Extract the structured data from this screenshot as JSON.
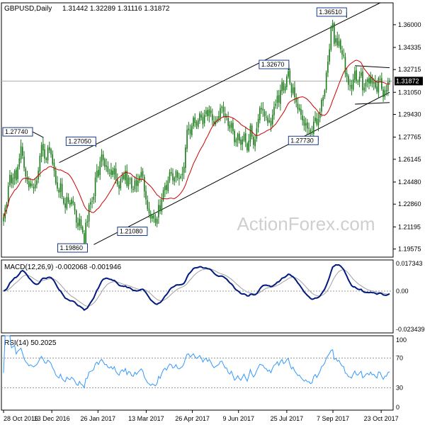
{
  "header": {
    "symbol": "GBPUSD,Daily",
    "ohlc": "1.31442 1.32289 1.31116 1.31872"
  },
  "watermark": "ActionForex.com",
  "colors": {
    "candle": "#1a7a1a",
    "ma": "#cc0000",
    "macd": "#001a80",
    "signal": "#a0a0a0",
    "rsi": "#3399ff",
    "channel": "#000000",
    "grid_dots": "#999999",
    "price_box": "#000000",
    "watermark": "#cfcfcf"
  },
  "chart_data": [
    {
      "type": "candlestick",
      "title": "GBPUSD,Daily",
      "ylim": [
        1.1898,
        1.376
      ],
      "y_ticks": [
        "1.36000",
        "1.34335",
        "1.32715",
        "1.31050",
        "1.29430",
        "1.27765",
        "1.26145",
        "1.24480",
        "1.22860",
        "1.21195",
        "1.19575"
      ],
      "current_price": "1.31872",
      "x_ticks": [
        "28 Oct 2016",
        "13 Dec 2016",
        "26 Jan 2017",
        "13 Mar 2017",
        "26 Apr 2017",
        "9 Jun 2017",
        "25 Jul 2017",
        "7 Sep 2017",
        "23 Oct 2017"
      ],
      "annotations": [
        {
          "text": "1.27740",
          "x": "2016-12-05",
          "y": 1.2774
        },
        {
          "text": "1.27050",
          "x": "2017-01-24",
          "y": 1.2705
        },
        {
          "text": "1.19860",
          "x": "2017-01-16",
          "y": 1.1986
        },
        {
          "text": "1.21080",
          "x": "2017-03-14",
          "y": 1.2108
        },
        {
          "text": "1.32670",
          "x": "2017-07-27",
          "y": 1.3267
        },
        {
          "text": "1.27730",
          "x": "2017-08-24",
          "y": 1.2773
        },
        {
          "text": "1.36510",
          "x": "2017-09-20",
          "y": 1.3651
        }
      ],
      "close": [
        1.219,
        1.226,
        1.229,
        1.242,
        1.25,
        1.244,
        1.248,
        1.253,
        1.246,
        1.256,
        1.262,
        1.271,
        1.264,
        1.255,
        1.249,
        1.246,
        1.241,
        1.244,
        1.242,
        1.24,
        1.243,
        1.246,
        1.253,
        1.264,
        1.272,
        1.268,
        1.262,
        1.261,
        1.27,
        1.268,
        1.265,
        1.258,
        1.253,
        1.244,
        1.24,
        1.237,
        1.244,
        1.234,
        1.229,
        1.226,
        1.234,
        1.23,
        1.228,
        1.232,
        1.229,
        1.224,
        1.215,
        1.212,
        1.218,
        1.211,
        1.208,
        1.2,
        1.215,
        1.216,
        1.228,
        1.23,
        1.231,
        1.234,
        1.248,
        1.253,
        1.249,
        1.26,
        1.265,
        1.261,
        1.256,
        1.257,
        1.252,
        1.251,
        1.254,
        1.25,
        1.255,
        1.247,
        1.243,
        1.24,
        1.247,
        1.25,
        1.247,
        1.253,
        1.242,
        1.248,
        1.247,
        1.24,
        1.239,
        1.246,
        1.242,
        1.246,
        1.249,
        1.252,
        1.249,
        1.238,
        1.232,
        1.225,
        1.222,
        1.218,
        1.22,
        1.218,
        1.215,
        1.218,
        1.228,
        1.224,
        1.232,
        1.239,
        1.242,
        1.239,
        1.246,
        1.252,
        1.251,
        1.246,
        1.248,
        1.253,
        1.248,
        1.247,
        1.249,
        1.251,
        1.256,
        1.27,
        1.283,
        1.284,
        1.28,
        1.286,
        1.292,
        1.288,
        1.286,
        1.29,
        1.295,
        1.292,
        1.287,
        1.294,
        1.297,
        1.293,
        1.298,
        1.295,
        1.29,
        1.287,
        1.289,
        1.291,
        1.293,
        1.299,
        1.3,
        1.296,
        1.292,
        1.292,
        1.286,
        1.284,
        1.288,
        1.282,
        1.274,
        1.276,
        1.28,
        1.275,
        1.272,
        1.276,
        1.28,
        1.274,
        1.268,
        1.275,
        1.286,
        1.278,
        1.272,
        1.276,
        1.284,
        1.291,
        1.299,
        1.298,
        1.297,
        1.293,
        1.292,
        1.288,
        1.29,
        1.286,
        1.294,
        1.3,
        1.302,
        1.308,
        1.303,
        1.312,
        1.318,
        1.312,
        1.315,
        1.322,
        1.326,
        1.317,
        1.31,
        1.314,
        1.307,
        1.303,
        1.298,
        1.299,
        1.294,
        1.29,
        1.286,
        1.288,
        1.284,
        1.284,
        1.28,
        1.281,
        1.289,
        1.292,
        1.287,
        1.291,
        1.296,
        1.305,
        1.307,
        1.312,
        1.325,
        1.333,
        1.342,
        1.358,
        1.361,
        1.346,
        1.35,
        1.345,
        1.348,
        1.342,
        1.338,
        1.337,
        1.324,
        1.322,
        1.316,
        1.315,
        1.313,
        1.32,
        1.326,
        1.319,
        1.318,
        1.322,
        1.325,
        1.312,
        1.314,
        1.318,
        1.32,
        1.317,
        1.322,
        1.317,
        1.318,
        1.314,
        1.311,
        1.321,
        1.32,
        1.313,
        1.307,
        1.312,
        1.312,
        1.318,
        1.319
      ]
    },
    {
      "type": "line",
      "title": "MACD(12,26,9) -0.002068 -0.001946",
      "ylim": [
        -0.02344,
        0.0175
      ],
      "y_ticks": [
        "0.017343",
        "0.00",
        "-0.023439"
      ],
      "series": [
        {
          "name": "MACD(12,26,9)"
        },
        {
          "name": "signal"
        }
      ]
    },
    {
      "type": "line",
      "title": "RSI(14) 50.2025",
      "ylim": [
        0,
        100
      ],
      "y_ticks": [
        "100",
        "70",
        "30",
        "0"
      ],
      "levels": [
        70,
        30
      ],
      "series": [
        {
          "name": "RSI(14)"
        }
      ]
    }
  ]
}
